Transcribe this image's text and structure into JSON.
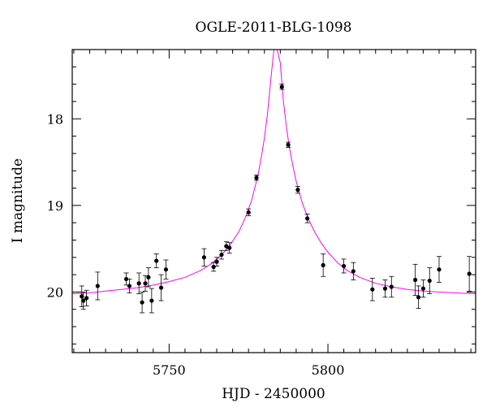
{
  "chart_data": {
    "type": "scatter",
    "title": "OGLE-2011-BLG-1098",
    "xlabel": "HJD - 2450000",
    "ylabel": "I magnitude",
    "xlim": [
      5719.5,
      5846.5
    ],
    "ylim": [
      20.7,
      17.2
    ],
    "y_inverted": true,
    "x_ticks": [
      5750,
      5800
    ],
    "y_ticks": [
      18,
      19,
      20
    ],
    "minor_x_step": 5,
    "minor_y_step": 0.2,
    "grid": false,
    "legend": "none",
    "colors": {
      "points": "#000000",
      "model": "#ff00ff",
      "axes": "#000000"
    },
    "points": [
      {
        "x": 5722.5,
        "y": 20.05,
        "err": 0.12
      },
      {
        "x": 5723.0,
        "y": 20.1,
        "err": 0.1
      },
      {
        "x": 5724.0,
        "y": 20.07,
        "err": 0.09
      },
      {
        "x": 5727.5,
        "y": 19.93,
        "err": 0.16
      },
      {
        "x": 5736.5,
        "y": 19.85,
        "err": 0.07
      },
      {
        "x": 5737.5,
        "y": 19.93,
        "err": 0.08
      },
      {
        "x": 5740.5,
        "y": 19.9,
        "err": 0.12
      },
      {
        "x": 5741.5,
        "y": 20.12,
        "err": 0.12
      },
      {
        "x": 5742.5,
        "y": 19.9,
        "err": 0.09
      },
      {
        "x": 5743.5,
        "y": 19.83,
        "err": 0.11
      },
      {
        "x": 5744.5,
        "y": 20.1,
        "err": 0.14
      },
      {
        "x": 5746.0,
        "y": 19.64,
        "err": 0.08
      },
      {
        "x": 5747.5,
        "y": 19.95,
        "err": 0.15
      },
      {
        "x": 5749.0,
        "y": 19.74,
        "err": 0.11
      },
      {
        "x": 5761.0,
        "y": 19.6,
        "err": 0.1
      },
      {
        "x": 5764.0,
        "y": 19.71,
        "err": 0.05
      },
      {
        "x": 5765.0,
        "y": 19.65,
        "err": 0.05
      },
      {
        "x": 5766.5,
        "y": 19.57,
        "err": 0.05
      },
      {
        "x": 5768.0,
        "y": 19.47,
        "err": 0.05
      },
      {
        "x": 5769.0,
        "y": 19.49,
        "err": 0.06
      },
      {
        "x": 5775.0,
        "y": 19.08,
        "err": 0.04
      },
      {
        "x": 5777.5,
        "y": 18.68,
        "err": 0.03
      },
      {
        "x": 5785.5,
        "y": 17.63,
        "err": 0.03
      },
      {
        "x": 5787.5,
        "y": 18.3,
        "err": 0.03
      },
      {
        "x": 5790.5,
        "y": 18.82,
        "err": 0.04
      },
      {
        "x": 5793.5,
        "y": 19.15,
        "err": 0.05
      },
      {
        "x": 5798.5,
        "y": 19.69,
        "err": 0.13
      },
      {
        "x": 5805.0,
        "y": 19.7,
        "err": 0.08
      },
      {
        "x": 5808.0,
        "y": 19.76,
        "err": 0.1
      },
      {
        "x": 5814.0,
        "y": 19.97,
        "err": 0.13
      },
      {
        "x": 5818.0,
        "y": 19.96,
        "err": 0.1
      },
      {
        "x": 5820.0,
        "y": 19.94,
        "err": 0.12
      },
      {
        "x": 5827.5,
        "y": 19.86,
        "err": 0.18
      },
      {
        "x": 5828.5,
        "y": 20.06,
        "err": 0.13
      },
      {
        "x": 5830.0,
        "y": 19.96,
        "err": 0.1
      },
      {
        "x": 5832.0,
        "y": 19.87,
        "err": 0.15
      },
      {
        "x": 5835.0,
        "y": 19.74,
        "err": 0.15
      },
      {
        "x": 5844.5,
        "y": 19.79,
        "err": 0.2
      }
    ],
    "model": {
      "x": [
        5719.5,
        5725,
        5730,
        5735,
        5740,
        5745,
        5750,
        5755,
        5760,
        5763,
        5766,
        5769,
        5772,
        5774,
        5776,
        5778,
        5779,
        5780,
        5781,
        5782,
        5783,
        5784,
        5785,
        5786,
        5787,
        5788,
        5789,
        5790,
        5792,
        5794,
        5796,
        5798,
        5800,
        5803,
        5806,
        5810,
        5815,
        5820,
        5825,
        5830,
        5835,
        5840,
        5846.5
      ],
      "y": [
        20.02,
        20.01,
        19.99,
        19.97,
        19.95,
        19.92,
        19.88,
        19.83,
        19.75,
        19.68,
        19.59,
        19.47,
        19.3,
        19.14,
        18.94,
        18.65,
        18.45,
        18.22,
        17.93,
        17.55,
        17.2,
        17.2,
        17.35,
        17.8,
        18.12,
        18.36,
        18.55,
        18.72,
        18.98,
        19.17,
        19.32,
        19.44,
        19.54,
        19.66,
        19.75,
        19.83,
        19.9,
        19.94,
        19.97,
        19.99,
        20.0,
        20.01,
        20.02
      ]
    }
  }
}
